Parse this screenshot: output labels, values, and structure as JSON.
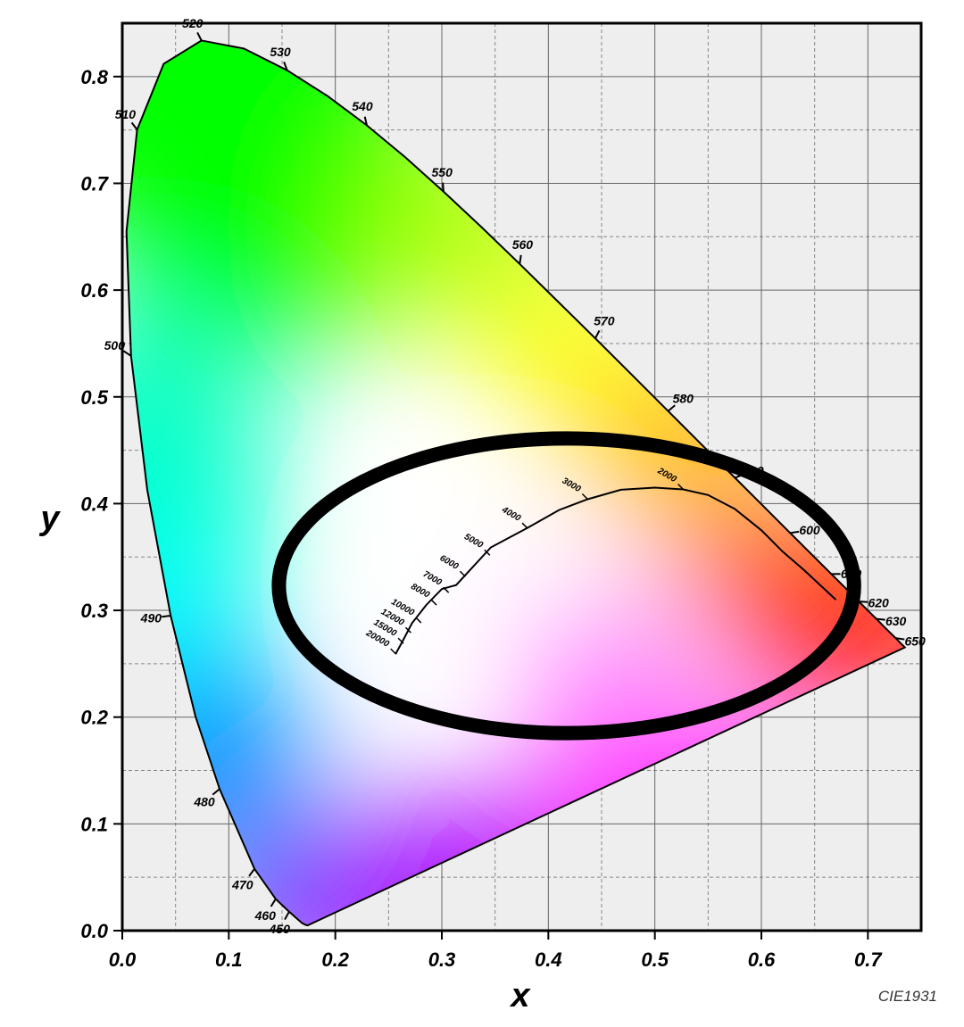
{
  "chart_data": {
    "type": "scatter",
    "title": "",
    "xlabel": "x",
    "ylabel": "y",
    "xlim": [
      0.0,
      0.75
    ],
    "ylim": [
      0.0,
      0.85
    ],
    "x_ticks": [
      "0.0",
      "0.1",
      "0.2",
      "0.3",
      "0.4",
      "0.5",
      "0.6",
      "0.7"
    ],
    "y_ticks": [
      "0.0",
      "0.1",
      "0.2",
      "0.3",
      "0.4",
      "0.5",
      "0.6",
      "0.7",
      "0.8"
    ],
    "grid": true,
    "grid_minor": true,
    "credit": "CIE1931",
    "spectral_locus": {
      "name": "",
      "points": [
        [
          0.1741,
          0.005
        ],
        [
          0.1738,
          0.0049
        ],
        [
          0.1736,
          0.005
        ],
        [
          0.1733,
          0.005
        ],
        [
          0.1726,
          0.0052
        ],
        [
          0.1714,
          0.0058
        ],
        [
          0.1689,
          0.0069
        ],
        [
          0.1644,
          0.0109
        ],
        [
          0.1566,
          0.0177
        ],
        [
          0.144,
          0.0297
        ],
        [
          0.1241,
          0.0578
        ],
        [
          0.0913,
          0.1327
        ],
        [
          0.0687,
          0.2007
        ],
        [
          0.0454,
          0.295
        ],
        [
          0.0235,
          0.4127
        ],
        [
          0.0082,
          0.5384
        ],
        [
          0.0039,
          0.6548
        ],
        [
          0.0139,
          0.7502
        ],
        [
          0.0389,
          0.812
        ],
        [
          0.0743,
          0.8338
        ],
        [
          0.1142,
          0.8262
        ],
        [
          0.1547,
          0.8059
        ],
        [
          0.1929,
          0.7816
        ],
        [
          0.2296,
          0.7543
        ],
        [
          0.2658,
          0.7243
        ],
        [
          0.3016,
          0.6923
        ],
        [
          0.3373,
          0.6589
        ],
        [
          0.3731,
          0.6245
        ],
        [
          0.4087,
          0.5896
        ],
        [
          0.4441,
          0.5547
        ],
        [
          0.4788,
          0.5202
        ],
        [
          0.5125,
          0.4866
        ],
        [
          0.5448,
          0.4544
        ],
        [
          0.5752,
          0.4242
        ],
        [
          0.6029,
          0.3965
        ],
        [
          0.627,
          0.3725
        ],
        [
          0.6482,
          0.3514
        ],
        [
          0.6658,
          0.334
        ],
        [
          0.6801,
          0.3197
        ],
        [
          0.6915,
          0.3083
        ],
        [
          0.7006,
          0.2993
        ],
        [
          0.7079,
          0.292
        ],
        [
          0.714,
          0.2859
        ],
        [
          0.719,
          0.2809
        ],
        [
          0.723,
          0.277
        ],
        [
          0.726,
          0.274
        ],
        [
          0.7283,
          0.2717
        ],
        [
          0.73,
          0.27
        ],
        [
          0.7311,
          0.2689
        ],
        [
          0.732,
          0.268
        ],
        [
          0.7327,
          0.2673
        ],
        [
          0.7334,
          0.2666
        ],
        [
          0.734,
          0.266
        ],
        [
          0.7344,
          0.2656
        ],
        [
          0.7346,
          0.2654
        ],
        [
          0.7347,
          0.2653
        ]
      ]
    },
    "wavelength_labels": [
      {
        "nm": "450",
        "x": 0.1566,
        "y": 0.0177
      },
      {
        "nm": "460",
        "x": 0.144,
        "y": 0.0297
      },
      {
        "nm": "470",
        "x": 0.1241,
        "y": 0.0578
      },
      {
        "nm": "480",
        "x": 0.0913,
        "y": 0.1327
      },
      {
        "nm": "490",
        "x": 0.0454,
        "y": 0.295
      },
      {
        "nm": "500",
        "x": 0.0082,
        "y": 0.5384
      },
      {
        "nm": "510",
        "x": 0.0139,
        "y": 0.7502
      },
      {
        "nm": "520",
        "x": 0.0743,
        "y": 0.8338
      },
      {
        "nm": "530",
        "x": 0.1547,
        "y": 0.8059
      },
      {
        "nm": "540",
        "x": 0.2296,
        "y": 0.7543
      },
      {
        "nm": "550",
        "x": 0.3016,
        "y": 0.6923
      },
      {
        "nm": "560",
        "x": 0.3731,
        "y": 0.6245
      },
      {
        "nm": "570",
        "x": 0.4441,
        "y": 0.5547
      },
      {
        "nm": "580",
        "x": 0.5125,
        "y": 0.4866
      },
      {
        "nm": "590",
        "x": 0.5752,
        "y": 0.4242
      },
      {
        "nm": "600",
        "x": 0.627,
        "y": 0.3725
      },
      {
        "nm": "610",
        "x": 0.6658,
        "y": 0.334
      },
      {
        "nm": "620",
        "x": 0.6915,
        "y": 0.3083
      },
      {
        "nm": "630",
        "x": 0.7079,
        "y": 0.292
      },
      {
        "nm": "650",
        "x": 0.726,
        "y": 0.274
      }
    ],
    "planckian_locus": {
      "name": "",
      "points": [
        [
          0.2565,
          0.259
        ],
        [
          0.2625,
          0.27
        ],
        [
          0.272,
          0.288
        ],
        [
          0.2853,
          0.305
        ],
        [
          0.3,
          0.32
        ],
        [
          0.3135,
          0.3237
        ],
        [
          0.322,
          0.333
        ],
        [
          0.346,
          0.359
        ],
        [
          0.38,
          0.377
        ],
        [
          0.41,
          0.394
        ],
        [
          0.4369,
          0.4041
        ],
        [
          0.468,
          0.413
        ],
        [
          0.5,
          0.415
        ],
        [
          0.5267,
          0.4133
        ],
        [
          0.55,
          0.408
        ],
        [
          0.575,
          0.395
        ],
        [
          0.6,
          0.375
        ],
        [
          0.62,
          0.355
        ],
        [
          0.6401,
          0.3377
        ],
        [
          0.67,
          0.31
        ]
      ]
    },
    "cct_labels": [
      {
        "label": "20000",
        "x": 0.257,
        "y": 0.259
      },
      {
        "label": "15000",
        "x": 0.264,
        "y": 0.269
      },
      {
        "label": "12000",
        "x": 0.271,
        "y": 0.279
      },
      {
        "label": "10000",
        "x": 0.2806,
        "y": 0.2883
      },
      {
        "label": "8000",
        "x": 0.295,
        "y": 0.305
      },
      {
        "label": "7000",
        "x": 0.3064,
        "y": 0.3166
      },
      {
        "label": "6000",
        "x": 0.3221,
        "y": 0.3316
      },
      {
        "label": "5000",
        "x": 0.3451,
        "y": 0.3516
      },
      {
        "label": "4000",
        "x": 0.3805,
        "y": 0.3768
      },
      {
        "label": "3000",
        "x": 0.4369,
        "y": 0.4041
      },
      {
        "label": "2000",
        "x": 0.5267,
        "y": 0.4133
      }
    ],
    "ellipse_overlay": {
      "cx": 0.417,
      "cy": 0.323,
      "rx": 0.27,
      "ry": 0.138,
      "stroke_color": "#000000"
    },
    "background_color": "#eeeeee",
    "primary_colors": {
      "green": "#00ff00",
      "red": "#ff0000",
      "blue": "#3b00ff",
      "magenta": "#ff00ff",
      "cyan": "#00ffff",
      "yellow": "#ffff00",
      "white": "#ffffff"
    }
  }
}
